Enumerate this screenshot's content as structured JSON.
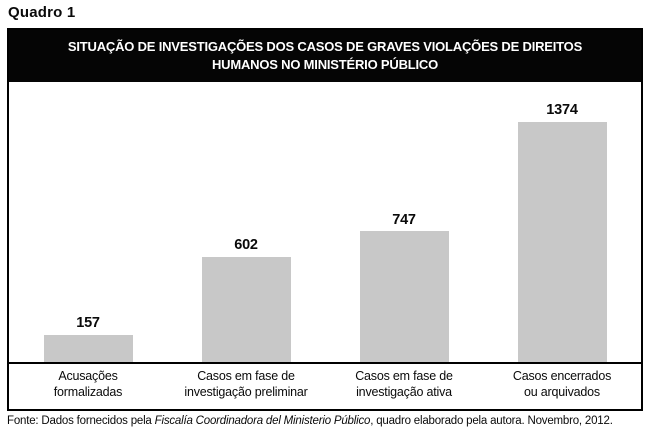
{
  "page": {
    "kicker": "Quadro 1"
  },
  "colors": {
    "bar_fill": "#c8c8c8",
    "header_bg": "#050505",
    "border": "#000000",
    "text": "#0a0a0a"
  },
  "chart_data": {
    "type": "bar",
    "title": "SITUAÇÃO DE INVESTIGAÇÕES DOS CASOS DE GRAVES VIOLAÇÕES DE DIREITOS HUMANOS NO MINISTÉRIO PÚBLICO",
    "title_lines": [
      "SITUAÇÃO DE INVESTIGAÇÕES DOS CASOS DE GRAVES VIOLAÇÕES DE DIREITOS",
      "HUMANOS NO MINISTÉRIO PÚBLICO"
    ],
    "categories": [
      "Acusações formalizadas",
      "Casos em fase de investigação preliminar",
      "Casos em fase de investigação ativa",
      "Casos encerrados ou arquivados"
    ],
    "categories_lines": [
      [
        "Acusações",
        "formalizadas"
      ],
      [
        "Casos em fase de",
        "investigação preliminar"
      ],
      [
        "Casos em fase de",
        "investigação ativa"
      ],
      [
        "Casos encerrados",
        "ou arquivados"
      ]
    ],
    "values": [
      157,
      602,
      747,
      1374
    ],
    "value_labels": [
      "157",
      "602",
      "747",
      "1374"
    ],
    "xlabel": "",
    "ylabel": "",
    "ylim": [
      0,
      1600
    ],
    "grid": false,
    "legend": null,
    "bar_color": "#c8c8c8"
  },
  "footer": {
    "prefix": "Fonte: Dados fornecidos pela ",
    "source": "Fiscalía Coordinadora del Ministerio Público",
    "suffix": ", quadro elaborado pela autora. Novembro, 2012."
  }
}
